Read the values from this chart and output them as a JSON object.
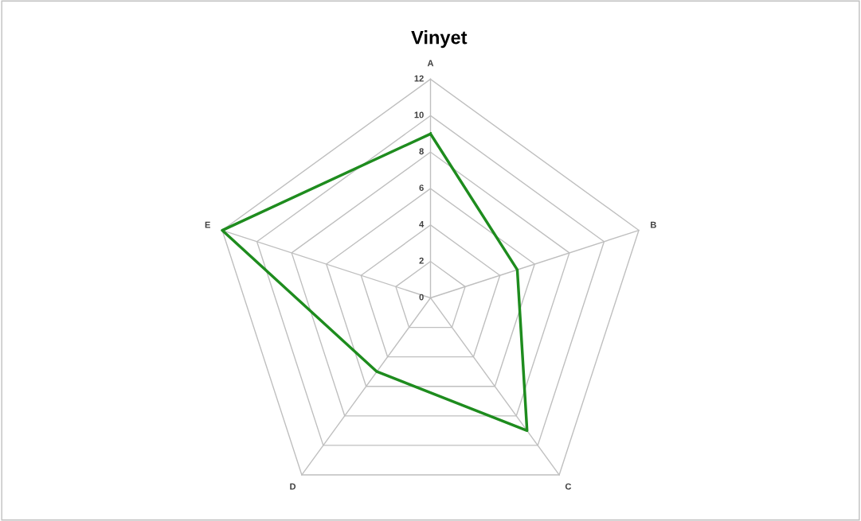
{
  "chart_data": {
    "type": "radar",
    "title": "Vinyet",
    "categories": [
      "A",
      "B",
      "C",
      "D",
      "E"
    ],
    "series": [
      {
        "color": "#1e8c1e",
        "values": [
          9,
          5,
          9,
          5,
          12
        ]
      }
    ],
    "ylim": [
      0,
      12
    ],
    "yticks": [
      0,
      2,
      4,
      6,
      8,
      10,
      12
    ],
    "grid": true
  }
}
